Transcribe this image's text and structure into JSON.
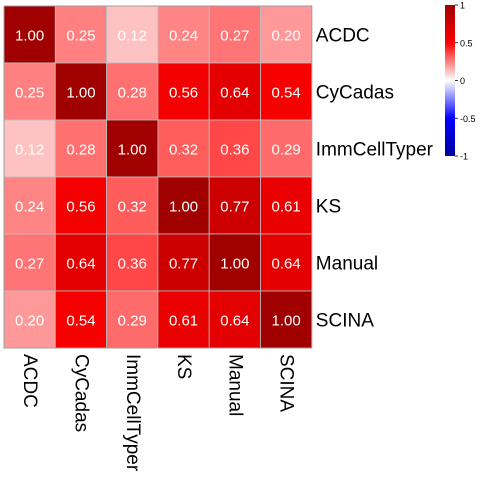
{
  "chart_data": {
    "type": "heatmap",
    "rows": [
      "ACDC",
      "CyCadas",
      "ImmCellTyper",
      "KS",
      "Manual",
      "SCINA"
    ],
    "columns": [
      "ACDC",
      "CyCadas",
      "ImmCellTyper",
      "KS",
      "Manual",
      "SCINA"
    ],
    "values": [
      [
        1.0,
        0.25,
        0.12,
        0.24,
        0.27,
        0.2
      ],
      [
        0.25,
        1.0,
        0.28,
        0.56,
        0.64,
        0.54
      ],
      [
        0.12,
        0.28,
        1.0,
        0.32,
        0.36,
        0.29
      ],
      [
        0.24,
        0.56,
        0.32,
        1.0,
        0.77,
        0.61
      ],
      [
        0.27,
        0.64,
        0.36,
        0.77,
        1.0,
        0.64
      ],
      [
        0.2,
        0.54,
        0.29,
        0.61,
        0.64,
        1.0
      ]
    ],
    "cell_labels": [
      [
        "1.00",
        "0.25",
        "0.12",
        "0.24",
        "0.27",
        "0.20"
      ],
      [
        "0.25",
        "1.00",
        "0.28",
        "0.56",
        "0.64",
        "0.54"
      ],
      [
        "0.12",
        "0.28",
        "1.00",
        "0.32",
        "0.36",
        "0.29"
      ],
      [
        "0.24",
        "0.56",
        "0.32",
        "1.00",
        "0.77",
        "0.61"
      ],
      [
        "0.27",
        "0.64",
        "0.36",
        "0.77",
        "1.00",
        "0.64"
      ],
      [
        "0.20",
        "0.54",
        "0.29",
        "0.61",
        "0.64",
        "1.00"
      ]
    ],
    "color_scale": {
      "range": [
        -1,
        1
      ],
      "ticks": [
        1,
        0.5,
        0,
        -0.5,
        -1
      ],
      "tick_labels": [
        "1",
        "0.5",
        "0",
        "-0.5",
        "-1"
      ],
      "low_color": "#0000a0",
      "mid_color": "#ffffff",
      "high_color": "#a00000"
    },
    "legend_placement": "top-right",
    "grid": true
  }
}
